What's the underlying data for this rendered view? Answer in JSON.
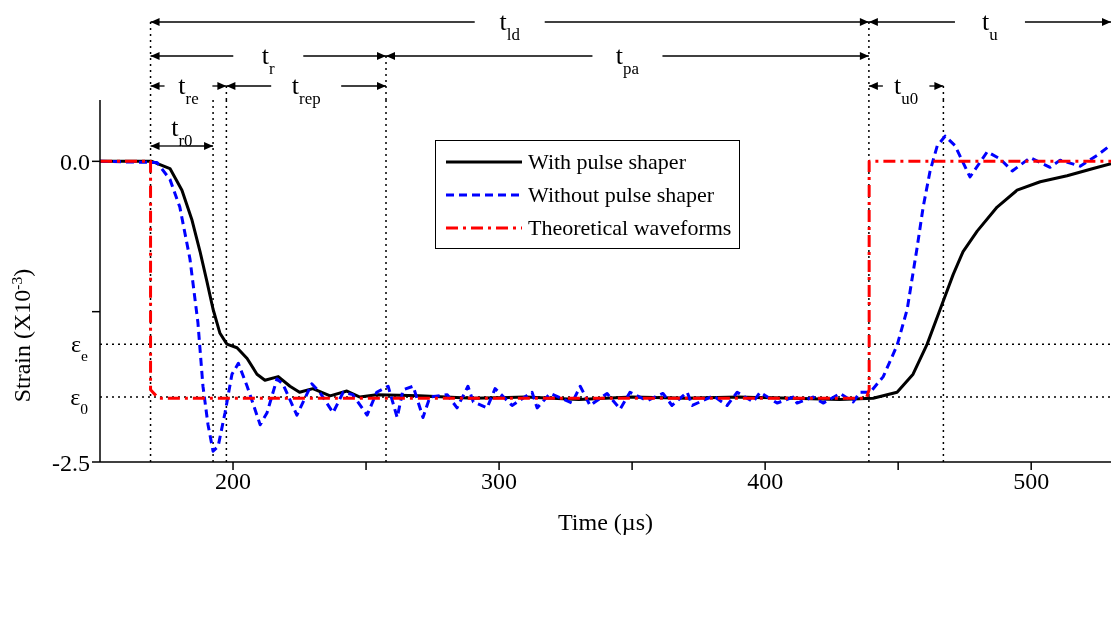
{
  "chart_data": {
    "type": "line",
    "xlabel": "Time (µs)",
    "ylabel": "Strain (X10$^{-3}$)",
    "xlim": [
      150,
      530
    ],
    "xticks": [
      200,
      {
        "value": 250,
        "label": null
      },
      300,
      {
        "value": 350,
        "label": null
      },
      400,
      {
        "value": 450,
        "label": null
      },
      500
    ],
    "ylim": [
      -2.5,
      0.51
    ],
    "yticks": [
      {
        "value": 0,
        "label": "0.0"
      },
      {
        "value": -1.25,
        "label": null
      },
      -2.5
    ],
    "legend": "top",
    "marker": "none",
    "series": [
      {
        "name": "With pulse shaper",
        "color": "#000000",
        "line_style": "solid",
        "x": [
          150,
          169.5,
          176.3,
          180.8,
          184.6,
          187.6,
          190.2,
          192.5,
          195.1,
          197.7,
          201.5,
          205.3,
          209,
          212,
          217,
          221.4,
          225,
          230,
          236.5,
          242.8,
          247.7,
          254,
          270,
          290,
          310,
          330,
          350,
          370,
          390,
          410,
          428,
          440.6,
          449.6,
          455.6,
          460.9,
          465.8,
          470.7,
          474.4,
          479.7,
          487.2,
          494.7,
          503.4,
          513.5,
          523.3,
          530
        ],
        "values": [
          0,
          0,
          -0.06,
          -0.24,
          -0.49,
          -0.75,
          -1.0,
          -1.23,
          -1.43,
          -1.52,
          -1.55,
          -1.64,
          -1.77,
          -1.82,
          -1.79,
          -1.87,
          -1.92,
          -1.89,
          -1.95,
          -1.91,
          -1.96,
          -1.94,
          -1.95,
          -1.97,
          -1.96,
          -1.98,
          -1.96,
          -1.97,
          -1.96,
          -1.97,
          -1.98,
          -1.97,
          -1.92,
          -1.77,
          -1.52,
          -1.23,
          -0.94,
          -0.75,
          -0.58,
          -0.38,
          -0.24,
          -0.17,
          -0.12,
          -0.06,
          -0.02
        ]
      },
      {
        "name": "Without pulse shaper",
        "color": "#0000ff",
        "line_style": "dashed",
        "x": [
          150,
          171.4,
          176.3,
          180,
          183.8,
          186.8,
          188.7,
          190.6,
          192.5,
          194.4,
          197,
          199.6,
          202,
          205.3,
          210.2,
          212.8,
          216.5,
          218.7,
          224,
          229.6,
          232.6,
          237.6,
          241.4,
          245,
          250.4,
          254,
          258.3,
          261.7,
          263.9,
          267.7,
          271.4,
          274,
          280.5,
          284.2,
          288.3,
          290.3,
          295.5,
          298.5,
          304.9,
          312.4,
          314.3,
          319.2,
          327.4,
          330.5,
          334.2,
          340.6,
          345.5,
          349.2,
          355.6,
          361.6,
          365,
          370.7,
          372.6,
          380.5,
          385.7,
          389.5,
          395.5,
          398.1,
          404.5,
          410.5,
          412,
          418,
          421.8,
          428.2,
          433.1,
          435.7,
          439.5,
          444.4,
          449.6,
          453.4,
          457.1,
          459.4,
          462,
          464.7,
          467.7,
          471.4,
          477,
          483.5,
          488.3,
          492.9,
          499.6,
          507.1,
          510.9,
          518.4,
          524.8,
          529
        ],
        "values": [
          0,
          -0.01,
          -0.15,
          -0.38,
          -0.81,
          -1.34,
          -1.87,
          -2.19,
          -2.41,
          -2.37,
          -2.09,
          -1.77,
          -1.68,
          -1.87,
          -2.19,
          -2.09,
          -1.81,
          -1.85,
          -2.11,
          -1.85,
          -1.92,
          -2.09,
          -1.92,
          -1.94,
          -2.11,
          -1.92,
          -1.87,
          -2.13,
          -1.9,
          -1.87,
          -2.13,
          -1.96,
          -1.94,
          -2.05,
          -1.87,
          -2.0,
          -2.05,
          -1.89,
          -2.03,
          -1.92,
          -2.05,
          -1.93,
          -2.01,
          -1.87,
          -2.03,
          -1.93,
          -2.06,
          -1.92,
          -1.99,
          -1.93,
          -2.03,
          -1.92,
          -2.03,
          -1.95,
          -2.03,
          -1.92,
          -2.0,
          -1.92,
          -2.01,
          -1.96,
          -2.01,
          -1.96,
          -2.01,
          -1.93,
          -2.0,
          -1.92,
          -1.92,
          -1.79,
          -1.53,
          -1.23,
          -0.72,
          -0.38,
          -0.08,
          0.13,
          0.21,
          0.13,
          -0.13,
          0.08,
          0.02,
          -0.08,
          0.03,
          -0.05,
          0.01,
          -0.04,
          0.05,
          0.12
        ]
      },
      {
        "name": "Theoretical waveforms",
        "color": "#ff0000",
        "line_style": "dashdot",
        "x": [
          150,
          169,
          169,
          172,
          438,
          439.1,
          439.1,
          530
        ],
        "values": [
          0,
          0,
          -1.9,
          -1.97,
          -1.97,
          -1.9,
          0,
          0
        ]
      }
    ],
    "ref_lines": [
      {
        "axis": "y",
        "value": -1.52,
        "label": "ε$_{e}$",
        "line_style": "dotted",
        "color": "#000000"
      },
      {
        "axis": "y",
        "value": -1.96,
        "label": "ε$_{0}$",
        "line_style": "dotted",
        "color": "#000000"
      },
      {
        "axis": "x",
        "value": 169,
        "line_style": "dotted",
        "color": "#000000"
      },
      {
        "axis": "x",
        "value": 192.5,
        "line_style": "dotted",
        "color": "#000000"
      },
      {
        "axis": "x",
        "value": 197.5,
        "line_style": "dotted",
        "color": "#000000"
      },
      {
        "axis": "x",
        "value": 257.5,
        "line_style": "dotted",
        "color": "#000000"
      },
      {
        "axis": "x",
        "value": 439,
        "line_style": "dotted",
        "color": "#000000"
      },
      {
        "axis": "x",
        "value": 467,
        "line_style": "dotted",
        "color": "#000000"
      }
    ],
    "annotations": [
      "t$_{ld}$",
      "t$_{u}$",
      "t$_{r}$",
      "t$_{pa}$",
      "t$_{re}$",
      "t$_{rep}$",
      "t$_{u0}$",
      "t$_{r0}$"
    ]
  }
}
